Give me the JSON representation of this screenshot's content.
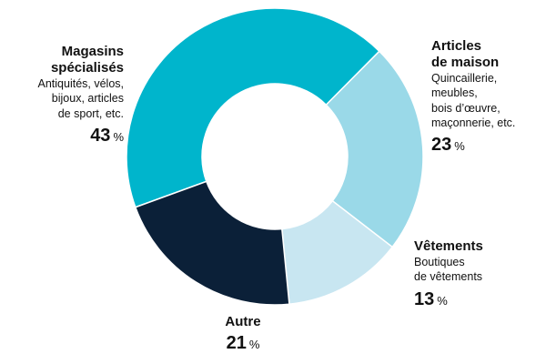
{
  "chart_data": {
    "type": "pie",
    "donut": true,
    "unit": "%",
    "slices": [
      {
        "name": "Magasins spécialisés",
        "description": "Antiquités, vélos, bijoux, articles de sport, etc.",
        "desc_lines": [
          "Antiquités, vélos,",
          "bijoux, articles",
          "de sport, etc."
        ],
        "value": 43,
        "label": "43",
        "color": "#00b5cc"
      },
      {
        "name": "Articles de maison",
        "name_lines": [
          "Articles",
          "de maison"
        ],
        "description": "Quincaillerie, meubles, bois d’œuvre, maçonnerie, etc.",
        "desc_lines": [
          "Quincaillerie,",
          "meubles,",
          "bois d’œuvre,",
          "maçonnerie, etc."
        ],
        "value": 23,
        "label": "23",
        "color": "#9ad9e8"
      },
      {
        "name": "Vêtements",
        "description": "Boutiques de vêtements",
        "desc_lines": [
          "Boutiques",
          "de vêtements"
        ],
        "value": 13,
        "label": "13",
        "color": "#c8e6f1"
      },
      {
        "name": "Autre",
        "description": "",
        "desc_lines": [],
        "value": 21,
        "label": "21",
        "color": "#0b2038"
      }
    ]
  }
}
